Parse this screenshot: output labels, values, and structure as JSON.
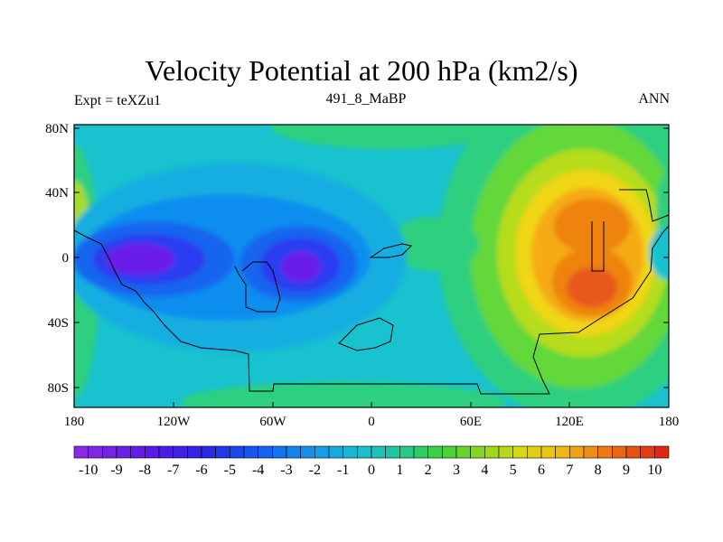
{
  "title": "Velocity Potential at 200 hPa (km2/s)",
  "left_label": "Expt = teXZu1",
  "center_label": "491_8_MaBP",
  "right_label": "ANN",
  "lat_ticks": [
    "80N",
    "40N",
    "0",
    "40S",
    "80S"
  ],
  "lon_ticks": [
    "180",
    "120W",
    "60W",
    "0",
    "60E",
    "120E",
    "180"
  ],
  "colorbar": {
    "labels": [
      "-10",
      "-9",
      "-8",
      "-7",
      "-6",
      "-5",
      "-4",
      "-3",
      "-2",
      "-1",
      "0",
      "1",
      "2",
      "3",
      "4",
      "5",
      "6",
      "7",
      "8",
      "9",
      "10"
    ],
    "min": -10.5,
    "max": 10.5,
    "step": 0.5
  },
  "colors": {
    "background_field": "#19c2cf",
    "coastline": "#000000"
  },
  "chart_data": {
    "type": "heatmap",
    "title": "Velocity Potential at 200 hPa (km2/s)",
    "variable": "Velocity Potential",
    "units": "km2/s",
    "level": "200 hPa",
    "x_range": [
      -180,
      180
    ],
    "y_range": [
      -90,
      90
    ],
    "features": [
      {
        "name": "western pacific maximum",
        "lon": 135,
        "lat": -15,
        "value": 8.5
      },
      {
        "name": "western pacific maximum north",
        "lon": 130,
        "lat": 25,
        "value": 7.5
      },
      {
        "name": "south atlantic minimum",
        "lon": -35,
        "lat": -5,
        "value": -9
      },
      {
        "name": "east pacific minimum",
        "lon": -135,
        "lat": 0,
        "value": -10
      }
    ]
  }
}
